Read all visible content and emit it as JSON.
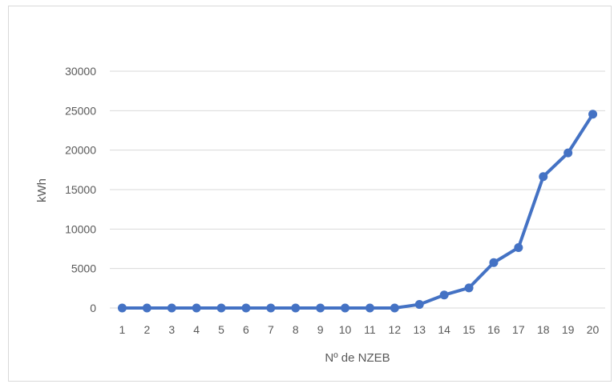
{
  "chart_data": {
    "type": "line",
    "title": "",
    "xlabel": "Nº de NZEB",
    "ylabel": "kWh",
    "ylim": [
      0,
      30000
    ],
    "yticks": [
      0,
      5000,
      10000,
      15000,
      20000,
      25000,
      30000
    ],
    "grid": true,
    "legend": "none",
    "categories": [
      "1",
      "2",
      "3",
      "4",
      "5",
      "6",
      "7",
      "8",
      "9",
      "10",
      "11",
      "12",
      "13",
      "14",
      "15",
      "16",
      "17",
      "18",
      "19",
      "20"
    ],
    "series": [
      {
        "color": "#4472c4",
        "values": [
          0,
          0,
          0,
          0,
          0,
          0,
          0,
          0,
          0,
          0,
          0,
          0,
          450,
          1650,
          2550,
          5750,
          7650,
          16650,
          19650,
          24550
        ]
      }
    ]
  }
}
